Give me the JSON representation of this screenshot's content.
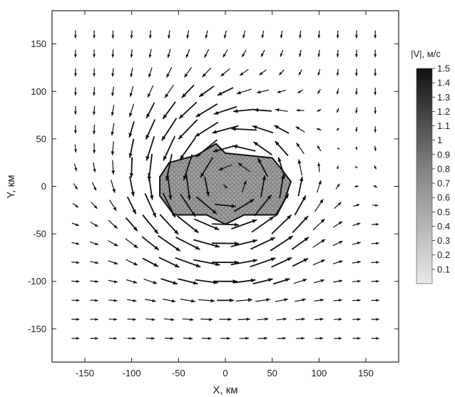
{
  "chart_data": {
    "type": "vector-field",
    "xlabel": "X, км",
    "ylabel": "Y, км",
    "xlim": [
      -185,
      185
    ],
    "ylim": [
      -185,
      185
    ],
    "xticks": [
      -150,
      -100,
      -50,
      0,
      50,
      100,
      150
    ],
    "yticks": [
      -150,
      -100,
      -50,
      0,
      50,
      100,
      150
    ],
    "grid": false,
    "grid_points": {
      "x_start": -160,
      "x_step": 20,
      "x_count": 17,
      "y_start": -160,
      "y_step": 20,
      "y_count": 17
    },
    "vortex": {
      "center": [
        0,
        0
      ],
      "rotation": "anticlockwise",
      "core_radius_km": 55,
      "max_speed": 1.5,
      "background_drift": "southward in upper half, eastward in lower half"
    },
    "speed_region": {
      "description": "shaded |V| region near vortex center",
      "polygon_km": [
        [
          -70,
          10
        ],
        [
          -60,
          25
        ],
        [
          -30,
          33
        ],
        [
          -10,
          45
        ],
        [
          0,
          35
        ],
        [
          20,
          33
        ],
        [
          50,
          30
        ],
        [
          60,
          18
        ],
        [
          70,
          5
        ],
        [
          63,
          -15
        ],
        [
          55,
          -30
        ],
        [
          20,
          -30
        ],
        [
          0,
          -40
        ],
        [
          -20,
          -30
        ],
        [
          -55,
          -30
        ],
        [
          -70,
          -10
        ]
      ]
    },
    "colorbar": {
      "title": "|V|, м/с",
      "min": 0,
      "max": 1.5,
      "ticks": [
        "0.1",
        "0.2",
        "0.3",
        "0.4",
        "0.5",
        "0.6",
        "0.7",
        "0.8",
        "0.9",
        "1",
        "1.1",
        "1.2",
        "1.3",
        "1.4",
        "1.5"
      ],
      "color_low": "#e8e8e8",
      "color_high": "#111111"
    }
  }
}
